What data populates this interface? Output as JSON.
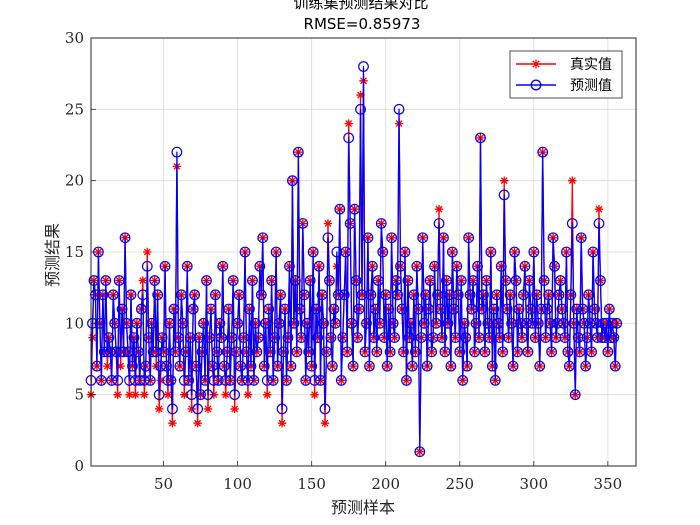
{
  "chart_data": {
    "type": "line",
    "title": "训练集预测结果对比",
    "subtitle": "RMSE=0.85973",
    "xlabel": "预测样本",
    "ylabel": "预测结果",
    "xlim": [
      1,
      369
    ],
    "ylim": [
      0,
      30
    ],
    "xticks": [
      50,
      100,
      150,
      200,
      250,
      300,
      350
    ],
    "yticks": [
      0,
      5,
      10,
      15,
      20,
      25,
      30
    ],
    "grid": true,
    "legend": "top-right",
    "n_samples": 369,
    "series": [
      {
        "name": "真实值",
        "color": "#ff0000",
        "marker": "asterisk",
        "values": [
          5,
          9,
          13,
          12,
          7,
          15,
          10,
          6,
          12,
          8,
          13,
          7,
          9,
          8,
          6,
          12,
          10,
          8,
          5,
          13,
          7,
          11,
          8,
          16,
          10,
          8,
          5,
          12,
          7,
          9,
          5,
          10,
          8,
          6,
          11,
          13,
          5,
          7,
          15,
          9,
          6,
          10,
          8,
          13,
          7,
          12,
          4,
          6,
          9,
          8,
          14,
          7,
          5,
          10,
          6,
          3,
          11,
          8,
          21,
          9,
          7,
          12,
          10,
          5,
          8,
          14,
          6,
          9,
          4,
          11,
          12,
          7,
          3,
          9,
          5,
          8,
          10,
          6,
          13,
          4,
          9,
          11,
          7,
          5,
          12,
          8,
          6,
          10,
          9,
          14,
          7,
          5,
          8,
          11,
          6,
          9,
          13,
          4,
          8,
          10,
          12,
          7,
          6,
          9,
          15,
          8,
          5,
          11,
          7,
          13,
          6,
          10,
          8,
          9,
          14,
          12,
          16,
          7,
          10,
          5,
          11,
          8,
          13,
          6,
          9,
          15,
          7,
          10,
          12,
          3,
          8,
          11,
          6,
          9,
          14,
          7,
          20,
          10,
          13,
          8,
          22,
          11,
          9,
          17,
          12,
          6,
          10,
          8,
          13,
          7,
          15,
          5,
          11,
          9,
          14,
          6,
          12,
          10,
          3,
          8,
          17,
          13,
          9,
          7,
          11,
          10,
          14,
          12,
          18,
          6,
          9,
          12,
          15,
          8,
          24,
          17,
          10,
          7,
          18,
          13,
          9,
          11,
          26,
          12,
          27,
          8,
          10,
          16,
          7,
          12,
          14,
          9,
          11,
          8,
          13,
          10,
          17,
          15,
          9,
          12,
          7,
          11,
          8,
          16,
          10,
          9,
          13,
          12,
          24,
          14,
          11,
          8,
          15,
          6,
          13,
          9,
          10,
          7,
          12,
          8,
          14,
          11,
          1,
          9,
          16,
          10,
          12,
          7,
          11,
          13,
          8,
          9,
          14,
          10,
          12,
          18,
          11,
          9,
          16,
          8,
          13,
          10,
          12,
          7,
          15,
          11,
          9,
          14,
          12,
          8,
          13,
          6,
          10,
          9,
          7,
          16,
          12,
          11,
          13,
          8,
          10,
          14,
          9,
          23,
          11,
          12,
          8,
          13,
          10,
          9,
          15,
          7,
          11,
          6,
          12,
          10,
          9,
          14,
          8,
          20,
          13,
          11,
          9,
          12,
          10,
          7,
          15,
          13,
          8,
          11,
          10,
          9,
          12,
          14,
          10,
          8,
          13,
          11,
          10,
          15,
          9,
          12,
          10,
          7,
          11,
          22,
          13,
          9,
          11,
          12,
          10,
          8,
          16,
          14,
          9,
          10,
          12,
          13,
          11,
          10,
          9,
          15,
          8,
          7,
          12,
          20,
          10,
          5,
          11,
          9,
          8,
          16,
          11,
          10,
          7,
          9,
          12,
          10,
          8,
          15,
          11,
          10,
          9,
          18,
          13,
          9,
          10,
          9,
          10,
          8,
          11,
          9,
          10,
          9,
          7,
          10
        ]
      },
      {
        "name": "预测值",
        "color": "#0000ff",
        "marker": "circle",
        "values": [
          6,
          10,
          13,
          12,
          7,
          15,
          10,
          6,
          12,
          8,
          13,
          8,
          9,
          8,
          6,
          12,
          10,
          8,
          6,
          13,
          8,
          11,
          8,
          16,
          10,
          8,
          6,
          12,
          7,
          9,
          6,
          10,
          8,
          6,
          11,
          12,
          6,
          7,
          14,
          9,
          6,
          10,
          8,
          13,
          8,
          12,
          5,
          7,
          9,
          8,
          14,
          7,
          6,
          10,
          6,
          4,
          11,
          8,
          22,
          9,
          7,
          12,
          10,
          6,
          8,
          14,
          6,
          9,
          5,
          11,
          12,
          7,
          4,
          9,
          5,
          8,
          10,
          6,
          13,
          5,
          9,
          11,
          7,
          6,
          12,
          8,
          6,
          10,
          9,
          14,
          7,
          6,
          8,
          11,
          6,
          9,
          13,
          5,
          8,
          10,
          12,
          7,
          6,
          9,
          15,
          8,
          6,
          11,
          7,
          13,
          6,
          10,
          8,
          9,
          14,
          12,
          16,
          7,
          10,
          6,
          11,
          8,
          13,
          6,
          9,
          15,
          7,
          10,
          12,
          4,
          8,
          11,
          6,
          9,
          14,
          7,
          20,
          10,
          13,
          8,
          22,
          11,
          9,
          17,
          12,
          6,
          10,
          8,
          13,
          7,
          15,
          6,
          11,
          9,
          14,
          6,
          12,
          10,
          4,
          8,
          16,
          13,
          9,
          7,
          11,
          10,
          15,
          12,
          18,
          6,
          9,
          12,
          15,
          8,
          23,
          17,
          10,
          7,
          18,
          13,
          9,
          11,
          25,
          12,
          28,
          8,
          10,
          16,
          7,
          12,
          14,
          9,
          11,
          8,
          13,
          10,
          17,
          15,
          9,
          12,
          7,
          11,
          8,
          16,
          10,
          9,
          13,
          12,
          25,
          14,
          11,
          8,
          15,
          6,
          13,
          9,
          10,
          7,
          12,
          8,
          14,
          11,
          1,
          9,
          16,
          10,
          12,
          7,
          11,
          13,
          8,
          9,
          14,
          10,
          12,
          17,
          11,
          9,
          16,
          8,
          13,
          10,
          12,
          7,
          15,
          11,
          9,
          14,
          12,
          8,
          13,
          6,
          10,
          9,
          7,
          16,
          12,
          11,
          13,
          8,
          10,
          14,
          9,
          23,
          11,
          12,
          8,
          13,
          10,
          9,
          15,
          7,
          11,
          6,
          12,
          10,
          9,
          14,
          8,
          19,
          13,
          11,
          9,
          12,
          10,
          7,
          15,
          13,
          8,
          11,
          10,
          9,
          12,
          14,
          10,
          8,
          13,
          11,
          10,
          15,
          9,
          12,
          10,
          7,
          11,
          22,
          13,
          9,
          11,
          12,
          10,
          8,
          16,
          14,
          9,
          10,
          12,
          13,
          11,
          10,
          9,
          15,
          8,
          7,
          12,
          17,
          10,
          5,
          11,
          9,
          8,
          16,
          11,
          10,
          7,
          9,
          12,
          10,
          8,
          15,
          11,
          10,
          9,
          17,
          13,
          9,
          10,
          9,
          10,
          8,
          11,
          9,
          10,
          9,
          7,
          10
        ]
      }
    ]
  }
}
